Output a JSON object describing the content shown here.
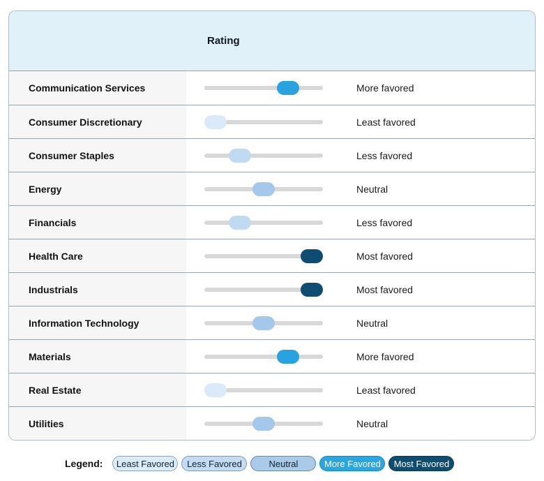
{
  "header": {
    "rating_label": "Rating"
  },
  "table": {
    "rows": [
      {
        "sector": "Communication Services",
        "rating_key": "more",
        "rating_label": "More favored"
      },
      {
        "sector": "Consumer Discretionary",
        "rating_key": "least",
        "rating_label": "Least favored"
      },
      {
        "sector": "Consumer Staples",
        "rating_key": "less",
        "rating_label": "Less favored"
      },
      {
        "sector": "Energy",
        "rating_key": "neutral",
        "rating_label": "Neutral"
      },
      {
        "sector": "Financials",
        "rating_key": "less",
        "rating_label": "Less favored"
      },
      {
        "sector": "Health Care",
        "rating_key": "most",
        "rating_label": "Most favored"
      },
      {
        "sector": "Industrials",
        "rating_key": "most",
        "rating_label": "Most favored"
      },
      {
        "sector": "Information Technology",
        "rating_key": "neutral",
        "rating_label": "Neutral"
      },
      {
        "sector": "Materials",
        "rating_key": "more",
        "rating_label": "More favored"
      },
      {
        "sector": "Real Estate",
        "rating_key": "least",
        "rating_label": "Least favored"
      },
      {
        "sector": "Utilities",
        "rating_key": "neutral",
        "rating_label": "Neutral"
      }
    ]
  },
  "rating_scale_map": {
    "least": {
      "position": 0,
      "color": "#dbeaf8"
    },
    "less": {
      "position": 0.25,
      "color": "#c1daf3"
    },
    "neutral": {
      "position": 0.5,
      "color": "#a5c8ea"
    },
    "more": {
      "position": 0.75,
      "color": "#29a3df"
    },
    "most": {
      "position": 1,
      "color": "#0e4d71"
    }
  },
  "legend": {
    "title": "Legend:",
    "items": [
      {
        "key": "least",
        "label": "Least Favored",
        "bg": "#dcebf8",
        "text_color": "#10222f",
        "border_color": "#8ba4ba"
      },
      {
        "key": "less",
        "label": "Less Favored",
        "bg": "#c3dcf4",
        "text_color": "#10222f",
        "border_color": "#7d9ab4"
      },
      {
        "key": "neutral",
        "label": "Neutral",
        "bg": "#a9cae9",
        "text_color": "#10222f",
        "border_color": "#68879f"
      },
      {
        "key": "more",
        "label": "More Favored",
        "bg": "#29a7e1",
        "text_color": "#ffffff",
        "border_color": "#0f89c4"
      },
      {
        "key": "most",
        "label": "Most Favored",
        "bg": "#0d4d72",
        "text_color": "#ffffff",
        "border_color": "#093a57"
      }
    ]
  },
  "chart_data": {
    "type": "table",
    "title": "Rating",
    "categories": [
      "Communication Services",
      "Consumer Discretionary",
      "Consumer Staples",
      "Energy",
      "Financials",
      "Health Care",
      "Industrials",
      "Information Technology",
      "Materials",
      "Real Estate",
      "Utilities"
    ],
    "ratings": [
      "More favored",
      "Least favored",
      "Less favored",
      "Neutral",
      "Less favored",
      "Most favored",
      "Most favored",
      "Neutral",
      "More favored",
      "Least favored",
      "Neutral"
    ],
    "rating_scale": [
      "Least Favored",
      "Less Favored",
      "Neutral",
      "More Favored",
      "Most Favored"
    ],
    "rating_values_1to5": [
      4,
      1,
      2,
      3,
      2,
      5,
      5,
      3,
      4,
      1,
      3
    ],
    "legend_position": "bottom"
  },
  "colors": {
    "header_bg": "#e1f1f9",
    "table_border": "#b3bac1",
    "row_separator": "#9ba3ab",
    "sector_column_bg": "#f6f6f6",
    "slider_track": "#d8d8d8"
  }
}
